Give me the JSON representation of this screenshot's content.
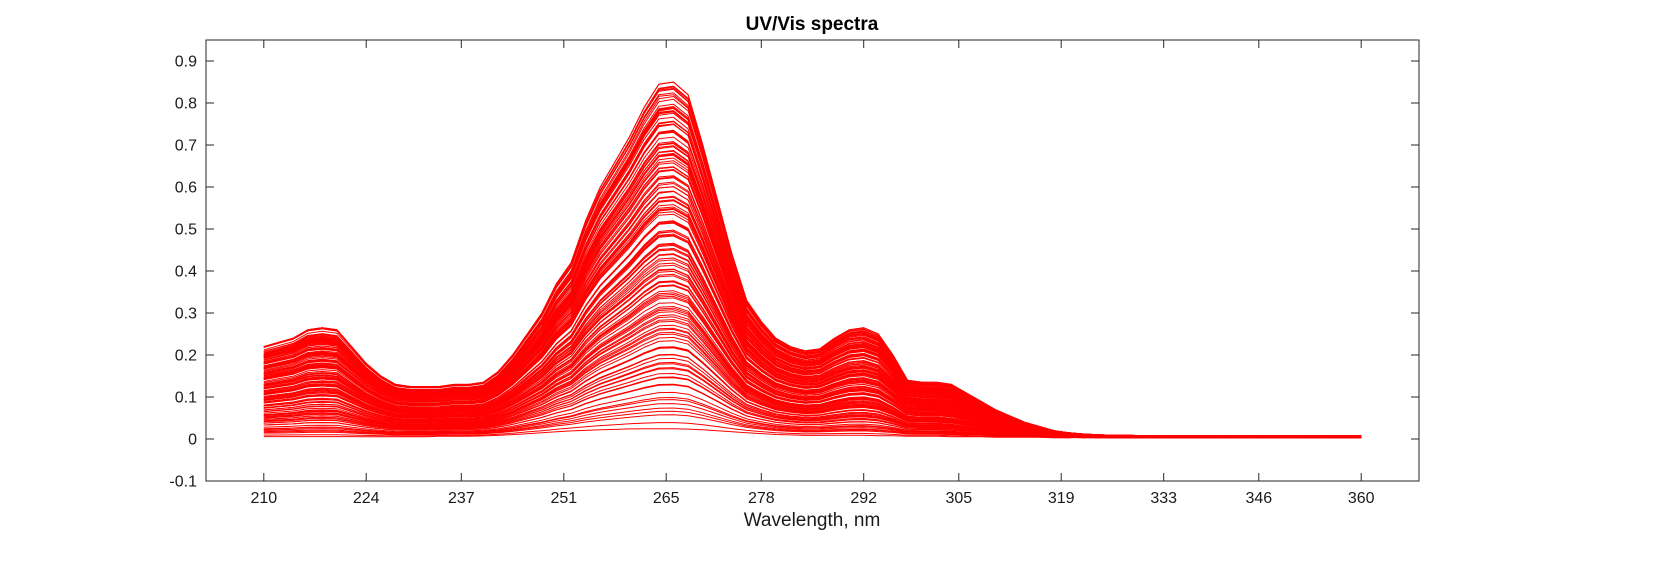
{
  "chart_data": {
    "type": "line",
    "title": "UV/Vis spectra",
    "xlabel": "Wavelength, nm",
    "ylabel": "",
    "xlim": [
      202.1,
      367.9
    ],
    "ylim": [
      -0.1,
      0.95
    ],
    "x_ticks": [
      210,
      224,
      237,
      251,
      265,
      278,
      292,
      305,
      319,
      333,
      346,
      360
    ],
    "y_ticks": [
      -0.1,
      0,
      0.1,
      0.2,
      0.3,
      0.4,
      0.5,
      0.6,
      0.7,
      0.8,
      0.9
    ],
    "y_tick_labels": [
      "-0.1",
      "0",
      "0.1",
      "0.2",
      "0.3",
      "0.4",
      "0.5",
      "0.6",
      "0.7",
      "0.8",
      "0.9"
    ],
    "grid": false,
    "legend": "none",
    "series_color": "#ff0000",
    "series_count": 150,
    "x": [
      210,
      212,
      214,
      216,
      218,
      220,
      222,
      224,
      226,
      228,
      230,
      232,
      234,
      236,
      238,
      240,
      242,
      244,
      246,
      248,
      250,
      252,
      254,
      256,
      258,
      260,
      262,
      264,
      266,
      268,
      270,
      272,
      274,
      276,
      278,
      280,
      282,
      284,
      286,
      288,
      290,
      292,
      294,
      296,
      298,
      300,
      302,
      304,
      306,
      308,
      310,
      312,
      314,
      316,
      318,
      320,
      322,
      324,
      326,
      328,
      330,
      332,
      334,
      336,
      338,
      340,
      342,
      344,
      346,
      348,
      350,
      352,
      354,
      356,
      358,
      360
    ],
    "envelope_max": [
      0.22,
      0.23,
      0.24,
      0.26,
      0.265,
      0.26,
      0.22,
      0.18,
      0.15,
      0.13,
      0.125,
      0.125,
      0.125,
      0.13,
      0.13,
      0.135,
      0.16,
      0.2,
      0.25,
      0.3,
      0.37,
      0.42,
      0.52,
      0.6,
      0.66,
      0.72,
      0.79,
      0.845,
      0.85,
      0.82,
      0.7,
      0.57,
      0.44,
      0.33,
      0.28,
      0.24,
      0.22,
      0.21,
      0.215,
      0.24,
      0.26,
      0.265,
      0.25,
      0.2,
      0.14,
      0.135,
      0.135,
      0.13,
      0.11,
      0.09,
      0.07,
      0.055,
      0.04,
      0.03,
      0.02,
      0.015,
      0.012,
      0.01,
      0.009,
      0.009,
      0.008,
      0.008,
      0.008,
      0.008,
      0.008,
      0.008,
      0.008,
      0.008,
      0.008,
      0.008,
      0.008,
      0.008,
      0.008,
      0.008,
      0.008,
      0.008
    ],
    "envelope_min": [
      0.005,
      0.005,
      0.005,
      0.005,
      0.005,
      0.005,
      0.005,
      0.005,
      0.005,
      0.005,
      0.005,
      0.005,
      0.006,
      0.006,
      0.006,
      0.007,
      0.008,
      0.01,
      0.012,
      0.014,
      0.016,
      0.018,
      0.019,
      0.02,
      0.021,
      0.022,
      0.022,
      0.022,
      0.022,
      0.021,
      0.02,
      0.018,
      0.016,
      0.014,
      0.012,
      0.01,
      0.009,
      0.008,
      0.008,
      0.008,
      0.008,
      0.008,
      0.007,
      0.007,
      0.006,
      0.006,
      0.006,
      0.005,
      0.005,
      0.005,
      0.004,
      0.004,
      0.004,
      0.004,
      0.003,
      0.003,
      0.003,
      0.003,
      0.003,
      0.003,
      0.003,
      0.003,
      0.003,
      0.003,
      0.003,
      0.003,
      0.003,
      0.003,
      0.003,
      0.003,
      0.003,
      0.003,
      0.003,
      0.003,
      0.003,
      0.003
    ]
  }
}
